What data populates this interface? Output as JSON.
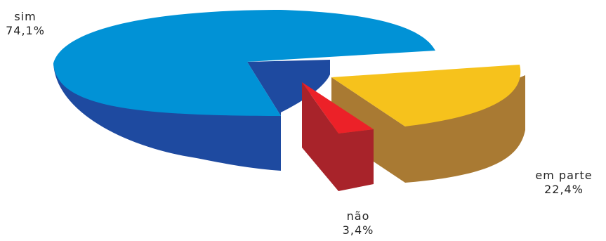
{
  "chart_data": {
    "type": "pie",
    "title": "",
    "style": "3d-exploded",
    "slices": [
      {
        "label": "sim",
        "value": 74.1,
        "display": "74,1%",
        "top_color": "#0192d6",
        "side_color": "#1e4aa0"
      },
      {
        "label": "em parte",
        "value": 22.4,
        "display": "22,4%",
        "top_color": "#f6c21c",
        "side_color": "#a97a33"
      },
      {
        "label": "não",
        "value": 3.4,
        "display": "3,4%",
        "top_color": "#ec2128",
        "side_color": "#a8232a"
      }
    ]
  }
}
